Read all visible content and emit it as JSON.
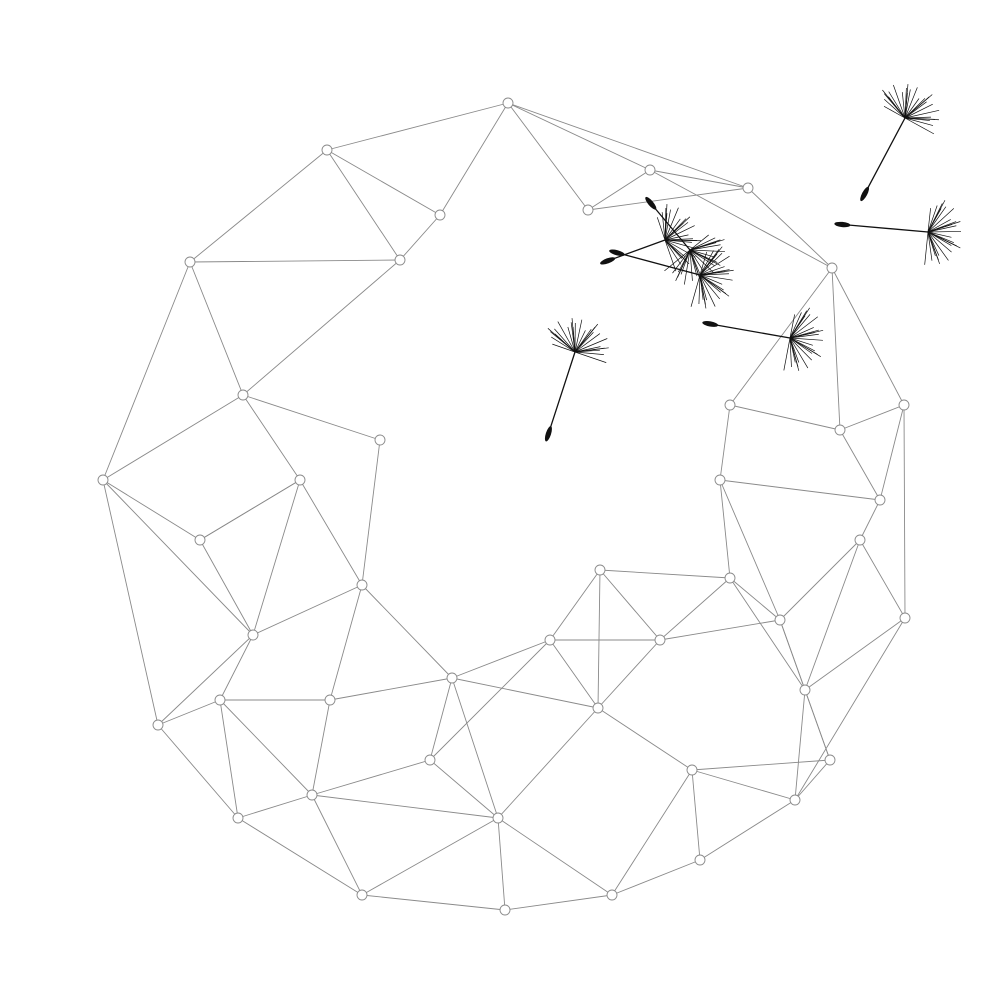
{
  "illustration": {
    "subject": "dandelion-clock-seed-head",
    "icon": "dandelion-icon",
    "colors": {
      "background": "#ffffff",
      "network_line": "#8a8a8a",
      "seed": "#111111"
    },
    "loose_seed_count": 7
  }
}
